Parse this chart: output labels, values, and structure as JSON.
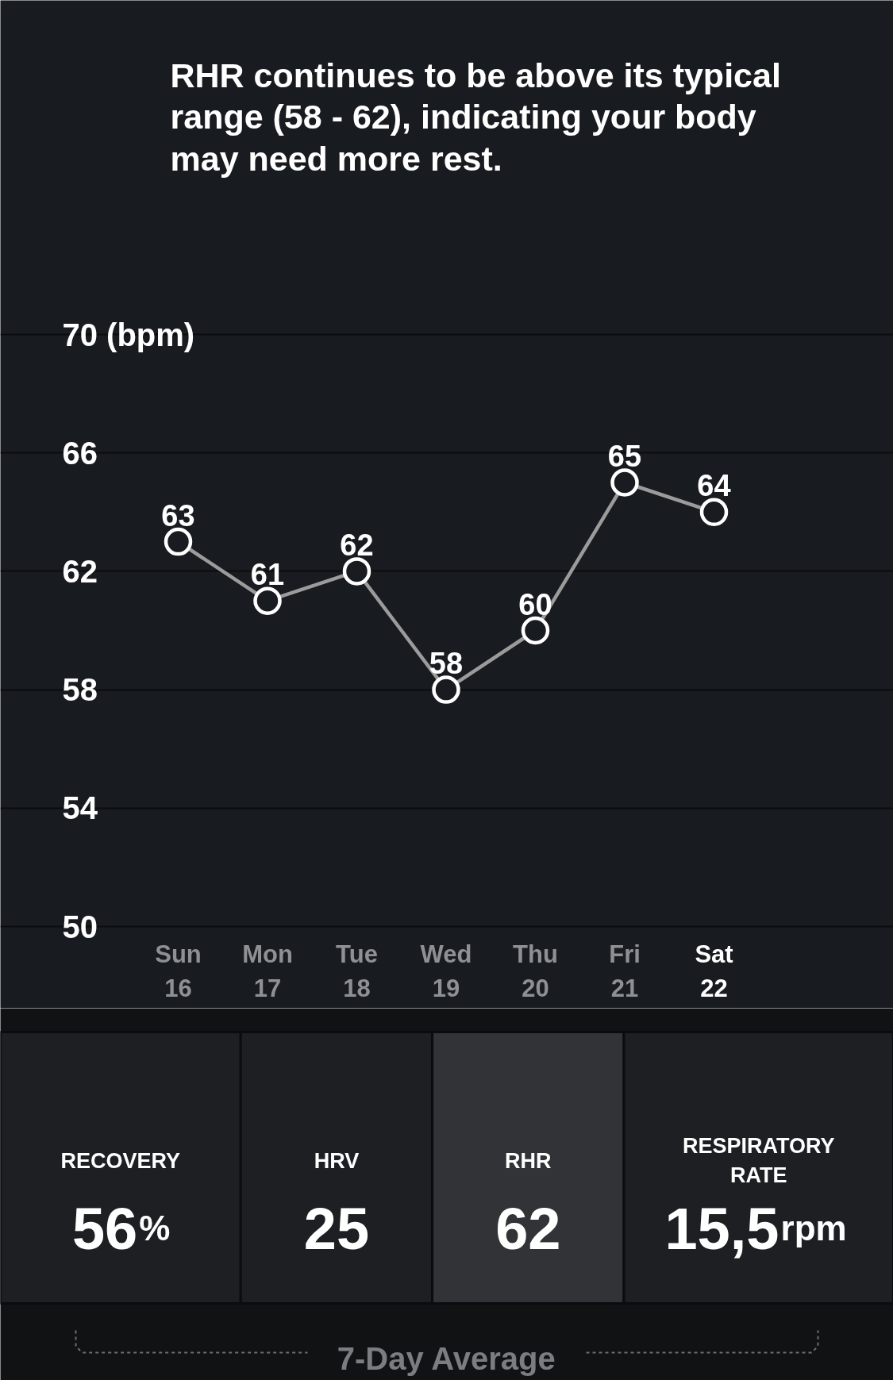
{
  "chart_data": [
    {
      "type": "line",
      "title": "RHR continues to be above its typical range (58 - 62), indicating your body may need more rest.",
      "categories": [
        "Sun 16",
        "Mon 17",
        "Tue 18",
        "Wed 19",
        "Thu 20",
        "Fri 21",
        "Sat 22"
      ],
      "values": [
        63,
        61,
        62,
        58,
        60,
        65,
        64
      ],
      "color": "#9b9b9b",
      "ylim": [
        50,
        70
      ],
      "yticks": [
        50,
        54,
        58,
        62,
        66,
        {
          "value": 70,
          "label": "70 (bpm)"
        }
      ],
      "grid": "y",
      "marker": "circle",
      "line_style": "solid",
      "data_labels": true
    },
    {
      "type": "other",
      "categories": [
        "RECOVERY",
        "HRV",
        "RHR",
        "RESPIRATORY RATE"
      ],
      "value_labels": [
        "56%",
        "25",
        "62",
        "15,5rpm"
      ],
      "colors": [
        "#1d1f22",
        "#1d1f22",
        "#313337",
        "#1d1f22"
      ],
      "annotations": [
        "7-Day Average"
      ]
    }
  ]
}
